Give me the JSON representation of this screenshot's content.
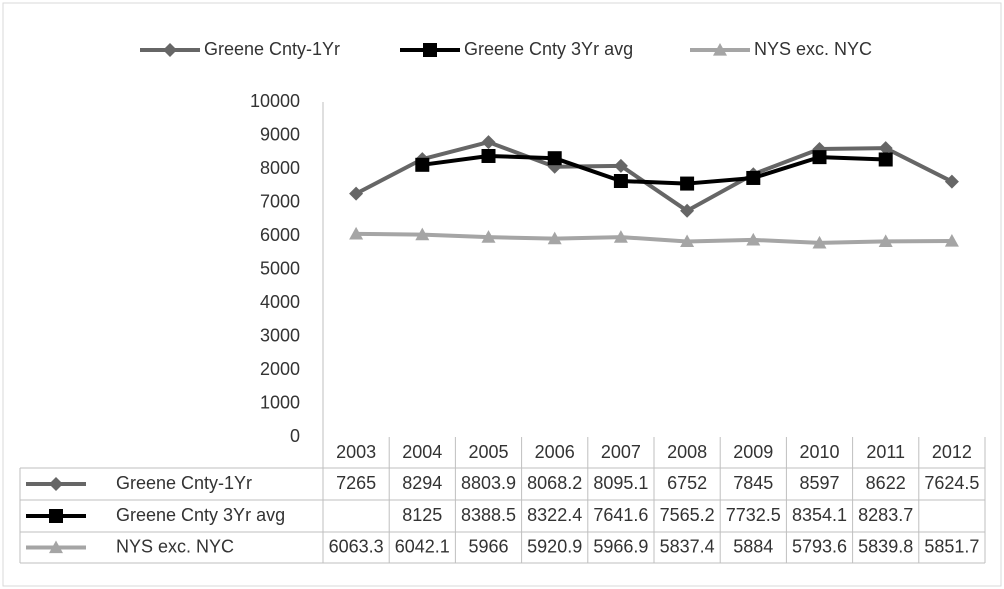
{
  "chart_data": {
    "type": "line",
    "categories": [
      "2003",
      "2004",
      "2005",
      "2006",
      "2007",
      "2008",
      "2009",
      "2010",
      "2011",
      "2012"
    ],
    "series": [
      {
        "name": "Greene Cnty-1Yr",
        "color": "#666666",
        "marker": "diamond",
        "values": [
          7265,
          8294,
          8803.9,
          8068.2,
          8095.1,
          6752,
          7845,
          8597,
          8622,
          7624.5
        ]
      },
      {
        "name": "Greene Cnty 3Yr avg",
        "color": "#000000",
        "marker": "square",
        "values": [
          null,
          8125,
          8388.5,
          8322.4,
          7641.6,
          7565.2,
          7732.5,
          8354.1,
          8283.7,
          null
        ]
      },
      {
        "name": "NYS exc. NYC",
        "color": "#a5a5a5",
        "marker": "triangle",
        "values": [
          6063.3,
          6042.1,
          5966,
          5920.9,
          5966.9,
          5837.4,
          5884,
          5793.6,
          5839.8,
          5851.7
        ]
      }
    ],
    "ylim": [
      0,
      10000
    ],
    "yticks": [
      0,
      1000,
      2000,
      3000,
      4000,
      5000,
      6000,
      7000,
      8000,
      9000,
      10000
    ],
    "grid": false,
    "legend": "top",
    "data_table": true
  }
}
